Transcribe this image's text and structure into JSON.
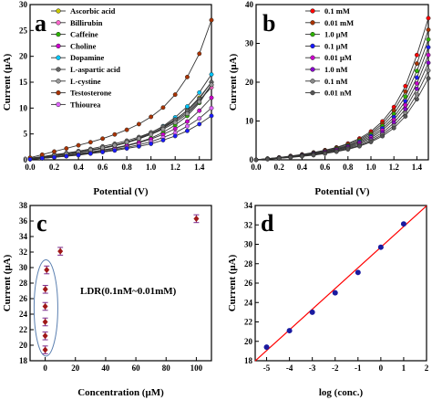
{
  "chart_data": [
    {
      "panel": "a",
      "type": "line",
      "xlabel": "Potential (V)",
      "ylabel": "Current (μA)",
      "xlim": [
        0.0,
        1.5
      ],
      "ylim": [
        0,
        30
      ],
      "xticks": [
        "0.0",
        "0.2",
        "0.4",
        "0.6",
        "0.8",
        "1.0",
        "1.2",
        "1.4"
      ],
      "yticks": [
        "0",
        "5",
        "10",
        "15",
        "20",
        "25",
        "30"
      ],
      "x": [
        0.0,
        0.1,
        0.2,
        0.3,
        0.4,
        0.5,
        0.6,
        0.7,
        0.8,
        0.9,
        1.0,
        1.1,
        1.2,
        1.3,
        1.4,
        1.5
      ],
      "legend_position": "top-left",
      "series": [
        {
          "name": "Ascorbic acid",
          "color": "#c8c800",
          "marker": "circle",
          "values": [
            0.2,
            0.5,
            0.8,
            1.1,
            1.4,
            1.8,
            2.2,
            2.7,
            3.3,
            4.0,
            5.0,
            6.2,
            7.7,
            9.6,
            12.0,
            15.0
          ]
        },
        {
          "name": "Billirubin",
          "color": "#ff66cc",
          "marker": "circle",
          "values": [
            0.3,
            0.6,
            0.9,
            1.2,
            1.5,
            1.9,
            2.3,
            2.8,
            3.4,
            4.1,
            5.0,
            6.1,
            7.5,
            9.2,
            11.5,
            14.0
          ]
        },
        {
          "name": "Caffeine",
          "color": "#2db400",
          "marker": "circle",
          "values": [
            0.2,
            0.4,
            0.6,
            0.9,
            1.2,
            1.5,
            1.9,
            2.3,
            2.8,
            3.4,
            4.2,
            5.3,
            6.7,
            8.5,
            11.0,
            14.5
          ]
        },
        {
          "name": "Choline",
          "color": "#cc00cc",
          "marker": "circle",
          "values": [
            0.1,
            0.3,
            0.5,
            0.8,
            1.1,
            1.4,
            1.8,
            2.2,
            2.7,
            3.3,
            4.0,
            4.9,
            6.0,
            7.4,
            9.5,
            12.0
          ]
        },
        {
          "name": "Dopamine",
          "color": "#00c8ff",
          "marker": "circle",
          "values": [
            0.2,
            0.5,
            0.8,
            1.1,
            1.4,
            1.8,
            2.3,
            2.8,
            3.4,
            4.2,
            5.2,
            6.5,
            8.2,
            10.3,
            13.0,
            16.5
          ]
        },
        {
          "name": "L-aspartic acid",
          "color": "#666666",
          "marker": "circle",
          "values": [
            0.3,
            0.6,
            1.0,
            1.3,
            1.7,
            2.1,
            2.6,
            3.1,
            3.7,
            4.4,
            5.3,
            6.4,
            7.8,
            9.5,
            11.8,
            15.0
          ]
        },
        {
          "name": "L-cystine",
          "color": "#999999",
          "marker": "circle",
          "values": [
            0.2,
            0.5,
            0.8,
            1.1,
            1.5,
            1.9,
            2.3,
            2.8,
            3.4,
            4.1,
            4.9,
            5.9,
            7.2,
            8.9,
            11.2,
            14.5
          ]
        },
        {
          "name": "Testosterone",
          "color": "#aa3300",
          "marker": "circle",
          "values": [
            0.4,
            1.0,
            1.6,
            2.2,
            2.8,
            3.4,
            4.1,
            4.9,
            5.8,
            6.9,
            8.3,
            10.1,
            12.6,
            16.0,
            20.5,
            27.0
          ]
        },
        {
          "name": "Thiourea",
          "color": "#e066ff",
          "marker": "circle",
          "values": [
            0.1,
            0.3,
            0.5,
            0.7,
            1.0,
            1.3,
            1.6,
            2.0,
            2.4,
            2.9,
            3.5,
            4.3,
            5.2,
            6.5,
            8.0,
            10.0
          ]
        },
        {
          "color": "#1a1aff",
          "marker": "circle",
          "values": [
            0.1,
            0.3,
            0.5,
            0.7,
            0.9,
            1.2,
            1.5,
            1.8,
            2.2,
            2.6,
            3.1,
            3.8,
            4.6,
            5.6,
            6.9,
            8.5
          ]
        }
      ]
    },
    {
      "panel": "b",
      "type": "line",
      "xlabel": "Potential (V)",
      "ylabel": "Current (μA)",
      "xlim": [
        0.0,
        1.5
      ],
      "ylim": [
        0,
        40
      ],
      "xticks": [
        "0.0",
        "0.2",
        "0.4",
        "0.6",
        "0.8",
        "1.0",
        "1.2",
        "1.4"
      ],
      "yticks": [
        "0",
        "10",
        "20",
        "30",
        "40"
      ],
      "x": [
        0.0,
        0.1,
        0.2,
        0.3,
        0.4,
        0.5,
        0.6,
        0.7,
        0.8,
        0.9,
        1.0,
        1.1,
        1.2,
        1.3,
        1.4,
        1.5
      ],
      "legend_position": "top-left",
      "series": [
        {
          "name": "0.1 mM",
          "color": "#ff0000",
          "marker": "circle",
          "values": [
            0.0,
            0.3,
            0.6,
            1.0,
            1.4,
            1.9,
            2.5,
            3.2,
            4.2,
            5.5,
            7.3,
            9.9,
            13.6,
            19.0,
            27.0,
            36.5
          ]
        },
        {
          "name": "0.01 mM",
          "color": "#aa3300",
          "marker": "circle",
          "values": [
            0.0,
            0.3,
            0.6,
            0.9,
            1.3,
            1.8,
            2.4,
            3.1,
            4.0,
            5.2,
            6.9,
            9.3,
            12.7,
            17.6,
            24.8,
            33.5
          ]
        },
        {
          "name": "1.0 μM",
          "color": "#2db400",
          "marker": "circle",
          "values": [
            0.0,
            0.3,
            0.5,
            0.9,
            1.2,
            1.7,
            2.2,
            2.9,
            3.7,
            4.9,
            6.5,
            8.7,
            11.8,
            16.3,
            22.9,
            31.0
          ]
        },
        {
          "name": "0.1 μM",
          "color": "#1a1aff",
          "marker": "circle",
          "values": [
            0.0,
            0.2,
            0.5,
            0.8,
            1.2,
            1.6,
            2.1,
            2.7,
            3.5,
            4.6,
            6.1,
            8.1,
            11.0,
            15.1,
            21.2,
            29.0
          ]
        },
        {
          "name": "0.01 μM",
          "color": "#cc00cc",
          "marker": "circle",
          "values": [
            0.0,
            0.2,
            0.5,
            0.8,
            1.1,
            1.5,
            2.0,
            2.6,
            3.3,
            4.3,
            5.7,
            7.6,
            10.3,
            14.1,
            19.7,
            27.0
          ]
        },
        {
          "name": "1.0 nM",
          "color": "#8800cc",
          "marker": "circle",
          "values": [
            0.0,
            0.2,
            0.4,
            0.7,
            1.0,
            1.4,
            1.8,
            2.4,
            3.1,
            4.0,
            5.3,
            7.0,
            9.5,
            13.1,
            18.3,
            25.0
          ]
        },
        {
          "name": "0.1 nM",
          "color": "#888888",
          "marker": "circle",
          "values": [
            0.0,
            0.2,
            0.4,
            0.7,
            1.0,
            1.3,
            1.7,
            2.2,
            2.9,
            3.7,
            4.9,
            6.5,
            8.8,
            12.1,
            16.9,
            23.0
          ]
        },
        {
          "name": "0.01 nM",
          "color": "#555555",
          "marker": "circle",
          "values": [
            0.0,
            0.2,
            0.4,
            0.6,
            0.9,
            1.2,
            1.6,
            2.1,
            2.7,
            3.5,
            4.6,
            6.1,
            8.2,
            11.2,
            15.6,
            21.0
          ]
        }
      ]
    },
    {
      "panel": "c",
      "type": "scatter",
      "xlabel": "Concentration (μM)",
      "ylabel": "Current (μA)",
      "xlim": [
        -10,
        110
      ],
      "ylim": [
        18,
        38
      ],
      "xticks": [
        "0",
        "20",
        "40",
        "60",
        "80",
        "100"
      ],
      "yticks": [
        "18",
        "20",
        "22",
        "24",
        "26",
        "28",
        "30",
        "32",
        "34",
        "36",
        "38"
      ],
      "annotation": "LDR(0.1nM~0.01mM)",
      "points": [
        {
          "x": 1e-05,
          "y": 19.4
        },
        {
          "x": 0.0001,
          "y": 21.2
        },
        {
          "x": 0.001,
          "y": 23.0
        },
        {
          "x": 0.01,
          "y": 25.0
        },
        {
          "x": 0.1,
          "y": 27.2
        },
        {
          "x": 1,
          "y": 29.7
        },
        {
          "x": 10,
          "y": 32.1
        },
        {
          "x": 100,
          "y": 36.3
        }
      ],
      "error": 0.5,
      "marker_color": "#a01818",
      "error_color": "#7a2a8a"
    },
    {
      "panel": "d",
      "type": "scatter",
      "xlabel": "log (conc.)",
      "ylabel": "Current (μA)",
      "xlim": [
        -5.5,
        2
      ],
      "ylim": [
        18,
        34
      ],
      "xticks": [
        "-5",
        "-4",
        "-3",
        "-2",
        "-1",
        "0",
        "1",
        "2"
      ],
      "yticks": [
        "18",
        "20",
        "22",
        "24",
        "26",
        "28",
        "30",
        "32",
        "34"
      ],
      "x": [
        -5,
        -4,
        -3,
        -2,
        -1,
        0,
        1
      ],
      "values": [
        19.4,
        21.1,
        23.0,
        25.0,
        27.1,
        29.7,
        32.1
      ],
      "fit": {
        "slope": 2.13,
        "intercept": 29.7,
        "x_range": [
          -5.5,
          2
        ]
      },
      "marker_color": "#1a1aa0",
      "line_color": "#ff0000"
    }
  ]
}
